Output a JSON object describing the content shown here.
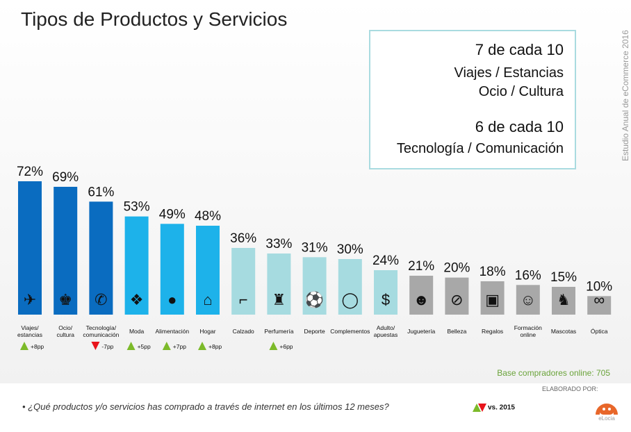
{
  "title": "Tipos de Productos y Servicios",
  "side_label": "Estudio Anual de eCommerce 2016",
  "highlight": {
    "line1": "7 de cada 10",
    "line2": "Viajes / Estancias",
    "line3": "Ocio / Cultura",
    "line4": "6 de cada 10",
    "line5": "Tecnología / Comunicación"
  },
  "chart_data": {
    "type": "bar",
    "categories": [
      "Viajes/\nestancias",
      "Ocio/\ncultura",
      "Tecnología/\ncomunicación",
      "Moda",
      "Alimentación",
      "Hogar",
      "Calzado",
      "Perfumería",
      "Deporte",
      "Complementos",
      "Adulto/\napuestas",
      "Juguetería",
      "Belleza",
      "Regalos",
      "Formación\nonline",
      "Mascotas",
      "Óptica"
    ],
    "values": [
      72,
      69,
      61,
      53,
      49,
      48,
      36,
      33,
      31,
      30,
      24,
      21,
      20,
      18,
      16,
      15,
      10
    ],
    "data_labels": [
      "72%",
      "69%",
      "61%",
      "53%",
      "49%",
      "48%",
      "36%",
      "33%",
      "31%",
      "30%",
      "24%",
      "21%",
      "20%",
      "18%",
      "16%",
      "15%",
      "10%"
    ],
    "changes_vs_2015": [
      "+8pp",
      "",
      "-7pp",
      "+5pp",
      "+7pp",
      "+8pp",
      "",
      "+6pp",
      "",
      "",
      "",
      "",
      "",
      "",
      "",
      "",
      ""
    ],
    "icons": [
      "airplane-icon",
      "chess-icon",
      "phone-icon",
      "jacket-icon",
      "apple-icon",
      "house-icon",
      "heel-icon",
      "perfume-icon",
      "ball-icon",
      "necklace-icon",
      "chip-icon",
      "teddy-icon",
      "mirror-icon",
      "gift-icon",
      "head-icon",
      "dog-icon",
      "glasses-icon"
    ],
    "glyphs": [
      "✈",
      "♚",
      "✆",
      "❖",
      "●",
      "⌂",
      "⌐",
      "♜",
      "⚽",
      "◯",
      "$",
      "☻",
      "⊘",
      "▣",
      "☺",
      "♞",
      "∞"
    ],
    "colors": [
      "#0a6cc0",
      "#0a6cc0",
      "#0a6cc0",
      "#1db2ea",
      "#1db2ea",
      "#1db2ea",
      "#a6dbe0",
      "#a6dbe0",
      "#a6dbe0",
      "#a6dbe0",
      "#a6dbe0",
      "#a8a8a8",
      "#a8a8a8",
      "#a8a8a8",
      "#a8a8a8",
      "#a8a8a8",
      "#a8a8a8"
    ],
    "up_color": "#7cba2a",
    "down_color": "#e8141b",
    "ylim": [
      0,
      100
    ]
  },
  "base_text": "Base compradores online: 705",
  "question": "•   ¿Qué productos y/o servicios has comprado a través de internet en los últimos 12 meses?",
  "legend_text": "vs. 2015",
  "elaborado": "ELABORADO POR:",
  "logo_text": "eLocia"
}
